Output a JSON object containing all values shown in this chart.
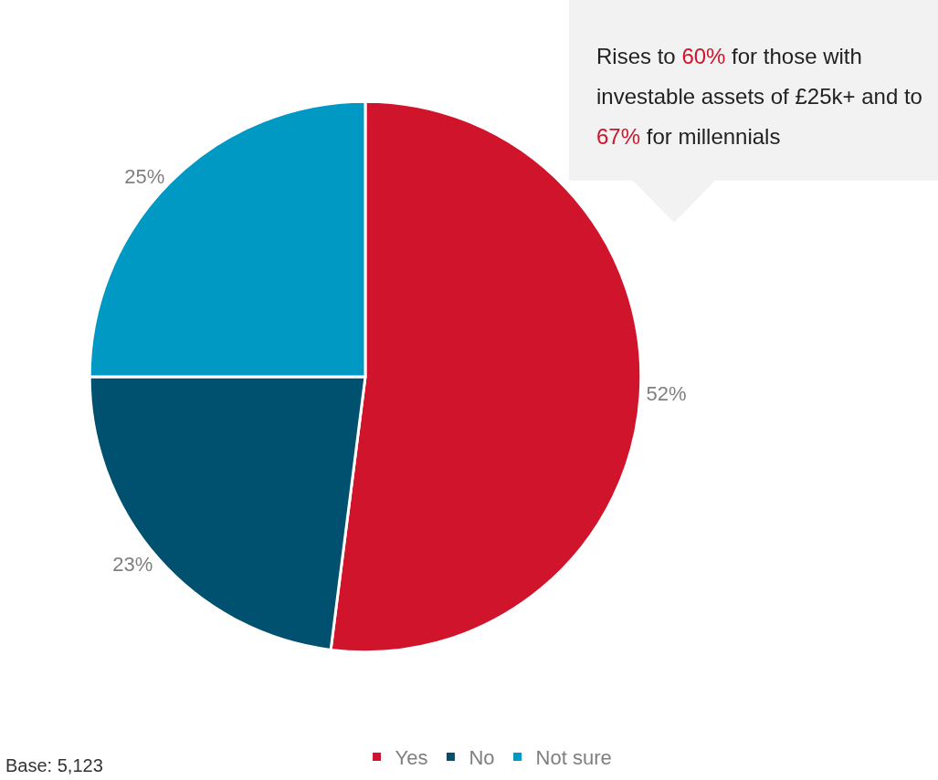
{
  "chart_data": {
    "type": "pie",
    "categories": [
      "Yes",
      "No",
      "Not sure"
    ],
    "values": [
      52,
      23,
      25
    ],
    "colors": [
      "#d0142c",
      "#00506f",
      "#0099c4"
    ],
    "value_labels": [
      "52%",
      "23%",
      "25%"
    ],
    "legend": "bottom",
    "annotations": [
      "Rises to 60% for those with investable assets of £25k+ and to 67%  for millennials",
      "Base: 5,123"
    ]
  }
}
